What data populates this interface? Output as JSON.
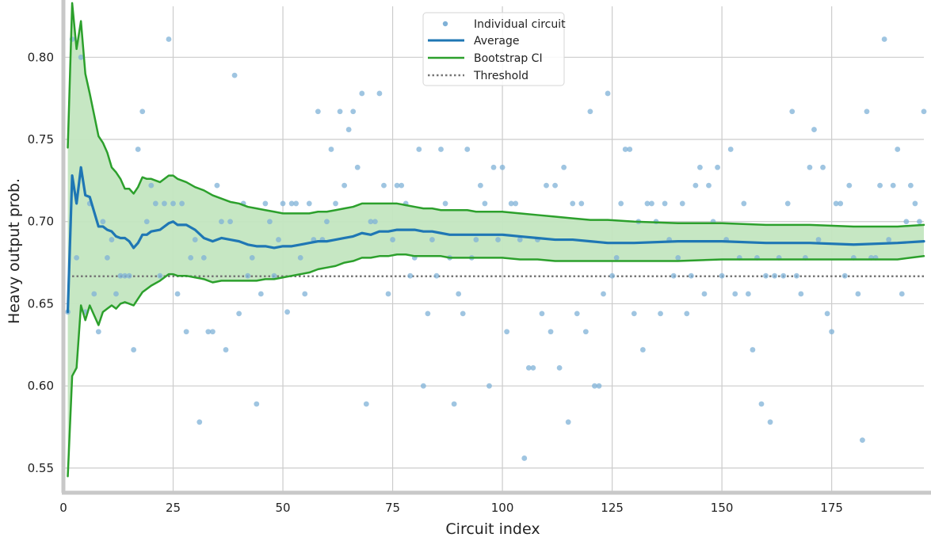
{
  "chart_data": {
    "type": "scatter",
    "title": "",
    "xlabel": "Circuit index",
    "ylabel": "Heavy output prob.",
    "xlim": [
      0,
      196
    ],
    "ylim": [
      0.535,
      0.831
    ],
    "xticks": [
      0,
      25,
      50,
      75,
      100,
      125,
      150,
      175
    ],
    "xtick_labels": [
      "0",
      "25",
      "50",
      "75",
      "100",
      "125",
      "150",
      "175"
    ],
    "yticks": [
      0.55,
      0.6,
      0.65,
      0.7,
      0.75,
      0.8
    ],
    "ytick_labels": [
      "0.55",
      "0.60",
      "0.65",
      "0.70",
      "0.75",
      "0.80"
    ],
    "grid": true,
    "legend_position": "top-center",
    "legend": [
      "Individual circuit",
      "Average",
      "Bootstrap CI",
      "Threshold"
    ],
    "threshold": 0.6667,
    "colors": {
      "scatter": "#7fb1d7",
      "average": "#1f77b4",
      "ci_line": "#2ca02c",
      "ci_fill": "#c3e6c0",
      "threshold": "#777777",
      "grid": "#cccccc",
      "spine": "#c8c8c8"
    },
    "series": [
      {
        "name": "Individual circuit",
        "kind": "scatter",
        "x": [
          1,
          2,
          3,
          4,
          5,
          6,
          7,
          8,
          9,
          10,
          11,
          12,
          13,
          14,
          15,
          16,
          17,
          18,
          19,
          20,
          21,
          22,
          23,
          24,
          25,
          26,
          27,
          28,
          29,
          30,
          31,
          32,
          33,
          34,
          35,
          36,
          37,
          38,
          39,
          40,
          41,
          42,
          43,
          44,
          45,
          46,
          47,
          48,
          49,
          50,
          51,
          52,
          53,
          54,
          55,
          56,
          57,
          58,
          59,
          60,
          61,
          62,
          63,
          64,
          65,
          66,
          67,
          68,
          69,
          70,
          71,
          72,
          73,
          74,
          75,
          76,
          77,
          78,
          79,
          80,
          81,
          82,
          83,
          84,
          85,
          86,
          87,
          88,
          89,
          90,
          91,
          92,
          93,
          94,
          95,
          96,
          97,
          98,
          99,
          100,
          101,
          102,
          103,
          104,
          105,
          106,
          107,
          108,
          109,
          110,
          111,
          112,
          113,
          114,
          115,
          116,
          117,
          118,
          119,
          120,
          121,
          122,
          123,
          124,
          125,
          126,
          127,
          128,
          129,
          130,
          131,
          132,
          133,
          134,
          135,
          136,
          137,
          138,
          139,
          140,
          141,
          142,
          143,
          144,
          145,
          146,
          147,
          148,
          149,
          150,
          151,
          152,
          153,
          154,
          155,
          156,
          157,
          158,
          159,
          160,
          161,
          162,
          163,
          164,
          165,
          166,
          167,
          168,
          169,
          170,
          171,
          172,
          173,
          174,
          175,
          176,
          177,
          178,
          179,
          180,
          181,
          182,
          183,
          184,
          185,
          186,
          187,
          188,
          189,
          190,
          191,
          192,
          193,
          194,
          195,
          196
        ],
        "y": [
          0.645,
          0.811,
          0.678,
          0.8,
          0.645,
          0.711,
          0.656,
          0.633,
          0.7,
          0.678,
          0.689,
          0.656,
          0.667,
          0.667,
          0.667,
          0.622,
          0.744,
          0.767,
          0.7,
          0.722,
          0.711,
          0.667,
          0.711,
          0.811,
          0.711,
          0.656,
          0.711,
          0.633,
          0.678,
          0.689,
          0.578,
          0.678,
          0.633,
          0.633,
          0.722,
          0.7,
          0.622,
          0.7,
          0.789,
          0.644,
          0.711,
          0.667,
          0.678,
          0.589,
          0.656,
          0.711,
          0.7,
          0.667,
          0.689,
          0.711,
          0.645,
          0.711,
          0.711,
          0.678,
          0.656,
          0.711,
          0.689,
          0.767,
          0.689,
          0.7,
          0.744,
          0.711,
          0.767,
          0.722,
          0.756,
          0.767,
          0.733,
          0.778,
          0.589,
          0.7,
          0.7,
          0.778,
          0.722,
          0.656,
          0.689,
          0.722,
          0.722,
          0.711,
          0.667,
          0.678,
          0.744,
          0.6,
          0.644,
          0.689,
          0.667,
          0.744,
          0.711,
          0.678,
          0.589,
          0.656,
          0.644,
          0.744,
          0.678,
          0.689,
          0.722,
          0.711,
          0.6,
          0.733,
          0.689,
          0.733,
          0.633,
          0.711,
          0.711,
          0.689,
          0.556,
          0.611,
          0.611,
          0.689,
          0.644,
          0.722,
          0.633,
          0.722,
          0.611,
          0.733,
          0.578,
          0.711,
          0.644,
          0.711,
          0.633,
          0.767,
          0.6,
          0.6,
          0.656,
          0.778,
          0.667,
          0.678,
          0.711,
          0.744,
          0.744,
          0.644,
          0.7,
          0.622,
          0.711,
          0.711,
          0.7,
          0.644,
          0.711,
          0.689,
          0.667,
          0.678,
          0.711,
          0.644,
          0.667,
          0.722,
          0.733,
          0.656,
          0.722,
          0.7,
          0.733,
          0.667,
          0.689,
          0.744,
          0.656,
          0.678,
          0.711,
          0.656,
          0.622,
          0.678,
          0.589,
          0.667,
          0.578,
          0.667,
          0.678,
          0.667,
          0.711,
          0.767,
          0.667,
          0.656,
          0.678,
          0.733,
          0.756,
          0.689,
          0.733,
          0.644,
          0.633,
          0.711,
          0.711,
          0.667,
          0.722,
          0.678,
          0.656,
          0.567,
          0.767,
          0.678,
          0.678,
          0.722,
          0.811,
          0.689,
          0.722,
          0.744,
          0.656,
          0.7,
          0.722,
          0.711,
          0.7,
          0.767
        ]
      },
      {
        "name": "Average",
        "kind": "line",
        "x": [
          1,
          2,
          3,
          4,
          5,
          6,
          7,
          8,
          9,
          10,
          11,
          12,
          13,
          14,
          15,
          16,
          17,
          18,
          19,
          20,
          22,
          24,
          25,
          26,
          28,
          30,
          32,
          34,
          36,
          38,
          40,
          42,
          44,
          46,
          48,
          50,
          52,
          54,
          56,
          58,
          60,
          62,
          64,
          66,
          68,
          70,
          72,
          74,
          76,
          78,
          80,
          82,
          84,
          86,
          88,
          90,
          92,
          94,
          96,
          98,
          100,
          104,
          108,
          112,
          116,
          120,
          124,
          130,
          140,
          150,
          160,
          170,
          180,
          190,
          196
        ],
        "y": [
          0.645,
          0.728,
          0.711,
          0.733,
          0.716,
          0.715,
          0.706,
          0.697,
          0.697,
          0.695,
          0.694,
          0.691,
          0.69,
          0.69,
          0.688,
          0.684,
          0.687,
          0.692,
          0.692,
          0.694,
          0.695,
          0.699,
          0.7,
          0.698,
          0.698,
          0.695,
          0.69,
          0.688,
          0.69,
          0.689,
          0.688,
          0.686,
          0.685,
          0.685,
          0.684,
          0.685,
          0.685,
          0.686,
          0.687,
          0.688,
          0.688,
          0.689,
          0.69,
          0.691,
          0.693,
          0.692,
          0.694,
          0.694,
          0.695,
          0.695,
          0.695,
          0.694,
          0.694,
          0.693,
          0.692,
          0.692,
          0.692,
          0.692,
          0.692,
          0.692,
          0.692,
          0.691,
          0.69,
          0.689,
          0.689,
          0.688,
          0.687,
          0.687,
          0.688,
          0.688,
          0.687,
          0.687,
          0.686,
          0.687,
          0.688
        ]
      },
      {
        "name": "Bootstrap CI upper",
        "kind": "line",
        "x": [
          1,
          2,
          3,
          4,
          5,
          6,
          7,
          8,
          9,
          10,
          11,
          12,
          13,
          14,
          15,
          16,
          17,
          18,
          19,
          20,
          22,
          24,
          25,
          26,
          28,
          30,
          32,
          34,
          36,
          38,
          40,
          42,
          44,
          46,
          48,
          50,
          52,
          54,
          56,
          58,
          60,
          62,
          64,
          66,
          68,
          70,
          72,
          74,
          76,
          78,
          80,
          82,
          84,
          86,
          88,
          90,
          92,
          94,
          96,
          98,
          100,
          104,
          108,
          112,
          116,
          120,
          124,
          130,
          140,
          150,
          160,
          170,
          180,
          190,
          196
        ],
        "y": [
          0.745,
          0.833,
          0.805,
          0.822,
          0.79,
          0.778,
          0.765,
          0.752,
          0.748,
          0.742,
          0.733,
          0.73,
          0.726,
          0.72,
          0.72,
          0.717,
          0.721,
          0.727,
          0.726,
          0.726,
          0.724,
          0.728,
          0.728,
          0.726,
          0.724,
          0.721,
          0.719,
          0.716,
          0.714,
          0.712,
          0.711,
          0.709,
          0.708,
          0.707,
          0.706,
          0.705,
          0.705,
          0.705,
          0.705,
          0.706,
          0.706,
          0.707,
          0.708,
          0.709,
          0.711,
          0.711,
          0.711,
          0.711,
          0.711,
          0.71,
          0.709,
          0.708,
          0.708,
          0.707,
          0.707,
          0.707,
          0.707,
          0.706,
          0.706,
          0.706,
          0.706,
          0.705,
          0.704,
          0.703,
          0.702,
          0.701,
          0.701,
          0.7,
          0.699,
          0.699,
          0.698,
          0.698,
          0.697,
          0.697,
          0.698
        ]
      },
      {
        "name": "Bootstrap CI lower",
        "kind": "line",
        "x": [
          1,
          2,
          3,
          4,
          5,
          6,
          7,
          8,
          9,
          10,
          11,
          12,
          13,
          14,
          15,
          16,
          17,
          18,
          19,
          20,
          22,
          24,
          25,
          26,
          28,
          30,
          32,
          34,
          36,
          38,
          40,
          42,
          44,
          46,
          48,
          50,
          52,
          54,
          56,
          58,
          60,
          62,
          64,
          66,
          68,
          70,
          72,
          74,
          76,
          78,
          80,
          82,
          84,
          86,
          88,
          90,
          92,
          94,
          96,
          98,
          100,
          104,
          108,
          112,
          116,
          120,
          124,
          130,
          140,
          150,
          160,
          170,
          180,
          190,
          196
        ],
        "y": [
          0.545,
          0.606,
          0.611,
          0.649,
          0.64,
          0.649,
          0.643,
          0.637,
          0.645,
          0.647,
          0.649,
          0.647,
          0.65,
          0.651,
          0.65,
          0.649,
          0.653,
          0.657,
          0.659,
          0.661,
          0.664,
          0.668,
          0.668,
          0.667,
          0.667,
          0.666,
          0.665,
          0.663,
          0.664,
          0.664,
          0.664,
          0.664,
          0.664,
          0.665,
          0.665,
          0.666,
          0.667,
          0.668,
          0.669,
          0.671,
          0.672,
          0.673,
          0.675,
          0.676,
          0.678,
          0.678,
          0.679,
          0.679,
          0.68,
          0.68,
          0.679,
          0.679,
          0.679,
          0.679,
          0.678,
          0.678,
          0.678,
          0.678,
          0.678,
          0.678,
          0.678,
          0.677,
          0.677,
          0.676,
          0.676,
          0.676,
          0.676,
          0.676,
          0.676,
          0.677,
          0.677,
          0.677,
          0.677,
          0.677,
          0.679
        ]
      }
    ]
  }
}
